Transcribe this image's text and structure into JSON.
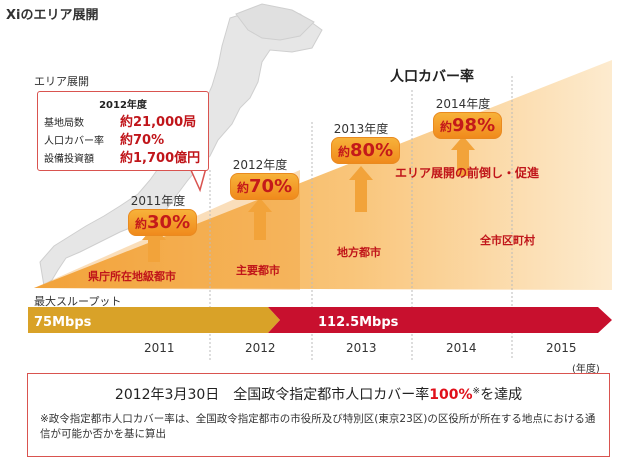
{
  "title": "Xiのエリア展開",
  "area_label": "エリア展開",
  "coverage_heading": "人口カバー率",
  "popup": {
    "year": "2012年度",
    "rows": [
      {
        "label": "基地局数",
        "value": "約21,000局"
      },
      {
        "label": "人口カバー率",
        "value": "約70%"
      },
      {
        "label": "設備投資額",
        "value": "約1,700億円"
      }
    ]
  },
  "milestones": [
    {
      "year": "2011年度",
      "prefix": "約",
      "pct": "30%"
    },
    {
      "year": "2012年度",
      "prefix": "約",
      "pct": "70%"
    },
    {
      "year": "2013年度",
      "prefix": "約",
      "pct": "80%"
    },
    {
      "year": "2014年度",
      "prefix": "約",
      "pct": "98%"
    }
  ],
  "regions": [
    "県庁所在地級都市",
    "主要都市",
    "地方都市",
    "全市区町村"
  ],
  "acceleration": "エリア展開の前倒し・促進",
  "throughput_label": "最大スループット",
  "speeds": [
    "75Mbps",
    "112.5Mbps"
  ],
  "years": [
    "2011",
    "2012",
    "2013",
    "2014",
    "2015"
  ],
  "unit": "(年度)",
  "notice": {
    "title_pre": "2012年3月30日　全国政令指定都市人口カバー率",
    "title_hl": "100%",
    "title_sup": "※",
    "title_post": "を達成",
    "note": "※政令指定都市人口カバー率は、全国政令指定都市の市役所及び特別区(東京23区)の区役所が所在する地点における通信が可能か否かを基に算出"
  },
  "colors": {
    "wedge_light": "#fde5c0",
    "wedge_mid": "#f9c57a",
    "wedge_dark": "#f3a43b",
    "orange": "#e8a030",
    "red": "#c8102e",
    "accent_text": "#c0151a"
  }
}
